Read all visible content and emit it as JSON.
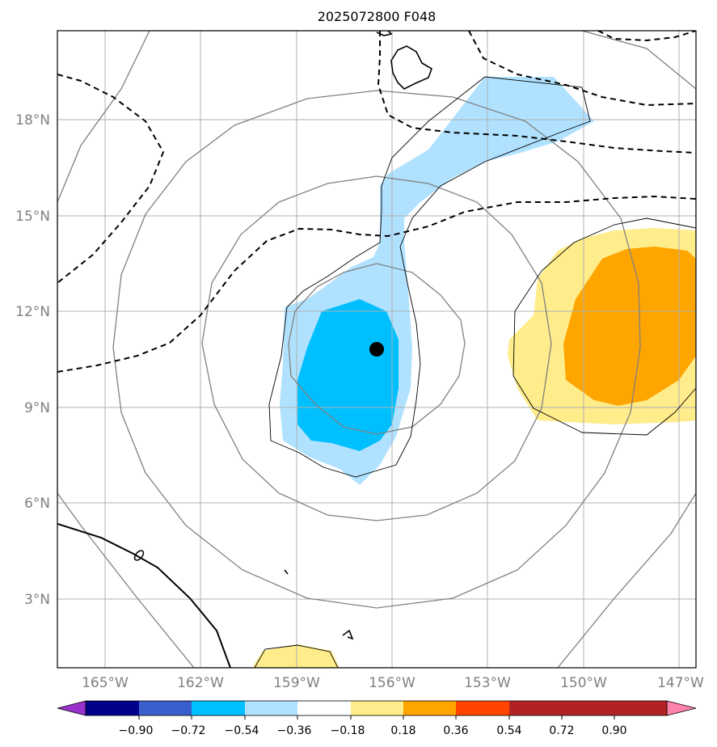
{
  "title": "2025072800 F048",
  "lat_labels": [
    "18°N",
    "15°N",
    "12°N",
    "9°N",
    "6°N",
    "3°N"
  ],
  "lon_labels": [
    "165°W",
    "162°W",
    "159°W",
    "156°W",
    "153°W",
    "150°W",
    "147°W"
  ],
  "colorbar": {
    "ticks": [
      "−0.90",
      "−0.72",
      "−0.54",
      "−0.36",
      "−0.18",
      "0.18",
      "0.36",
      "0.54",
      "0.72",
      "0.90"
    ],
    "colors": [
      "#9932cc",
      "#00008b",
      "#3a5fcd",
      "#00bfff",
      "#b0e2ff",
      "#ffffff",
      "#ffec8b",
      "#ffa500",
      "#ff4500",
      "#b22222",
      "#ff82ab"
    ]
  },
  "colors": {
    "shade_dark_blue": "#00bfff",
    "shade_light_blue": "#b0e2ff",
    "shade_light_yellow": "#ffec8b",
    "shade_orange": "#ffa500",
    "range_rings": "#808080",
    "gridlines": "#b0b0b0"
  },
  "markers": [
    {
      "name": "center-dot",
      "lon": -156.5,
      "lat": 10.8
    }
  ]
}
